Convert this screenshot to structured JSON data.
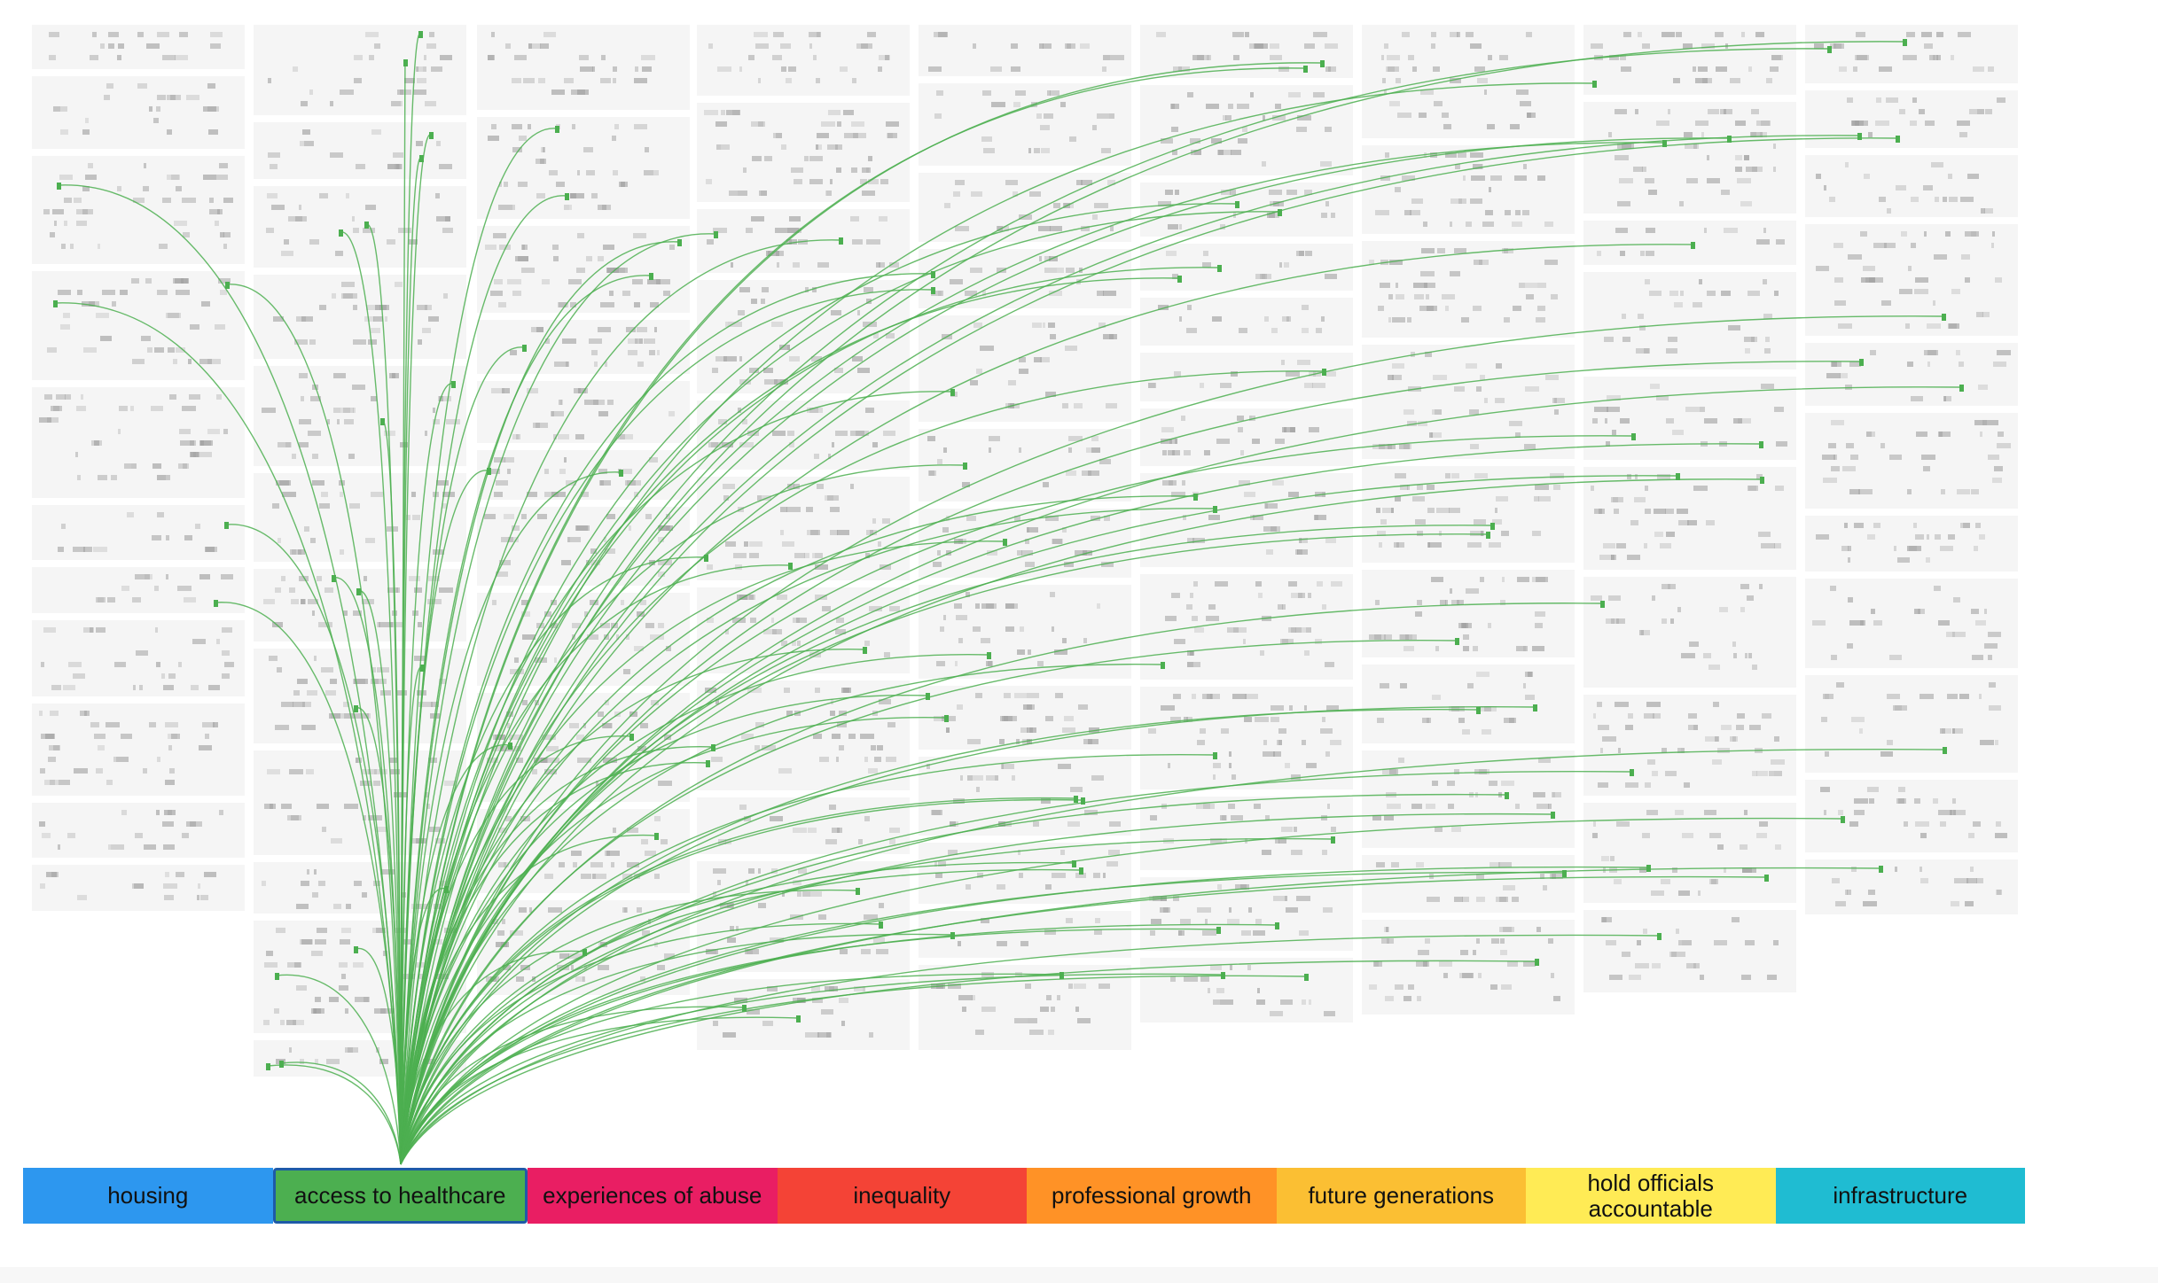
{
  "colors": {
    "link": "#4caf50",
    "card_bg": "#f5f5f5",
    "snippet": "#9e9e9e",
    "highlight": "#4caf50",
    "selected_border": "#1e5aa8"
  },
  "selected_topic": 1,
  "topics": [
    {
      "label": "housing",
      "color": "#2d97ef"
    },
    {
      "label": "access to healthcare",
      "color": "#4caf50"
    },
    {
      "label": "experiences of abuse",
      "color": "#e91e63"
    },
    {
      "label": "inequality",
      "color": "#f44336"
    },
    {
      "label": "professional growth",
      "color": "#ff9226"
    },
    {
      "label": "future generations",
      "color": "#fbbf33"
    },
    {
      "label": "hold officials\naccountable",
      "color": "#ffeb55"
    },
    {
      "label": "infrastructure",
      "color": "#1fbcd2"
    }
  ]
}
